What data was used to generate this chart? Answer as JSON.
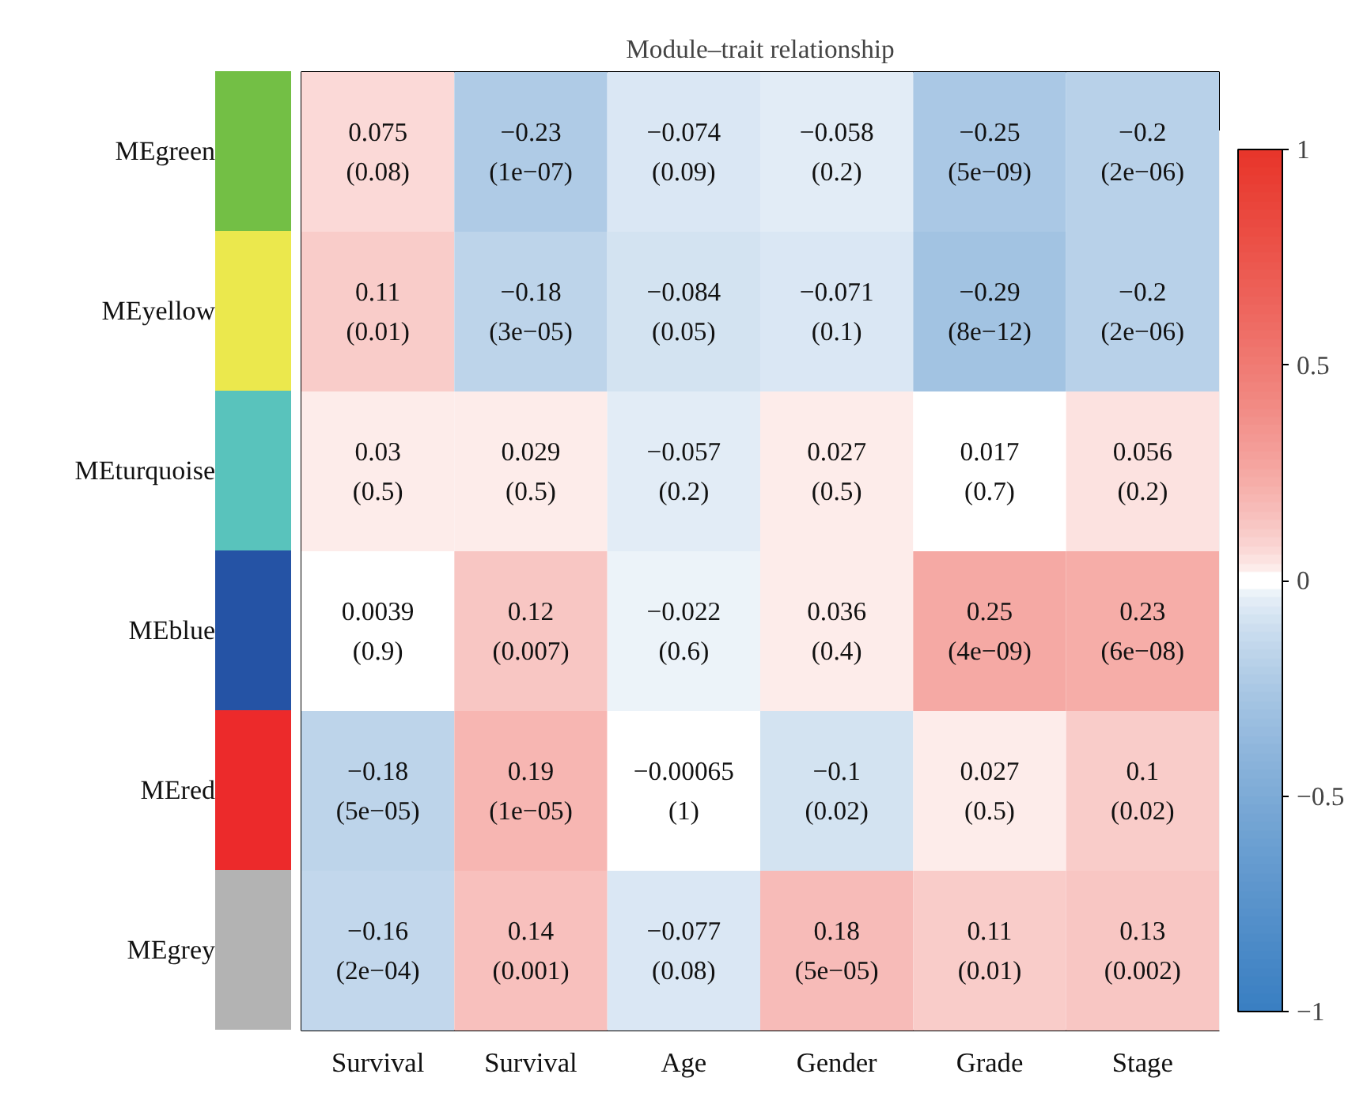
{
  "chart_data": {
    "type": "heatmap",
    "title": "Module–trait relationship",
    "categories": [
      "Survival",
      "Survival",
      "Age",
      "Gender",
      "Grade",
      "Stage"
    ],
    "y_categories": [
      "MEgreen",
      "MEyellow",
      "MEturquoise",
      "MEblue",
      "MEred",
      "MEgrey"
    ],
    "cells": [
      [
        0.075,
        -0.23,
        -0.074,
        -0.058,
        -0.25,
        -0.2
      ],
      [
        0.11,
        -0.18,
        -0.084,
        -0.071,
        -0.29,
        -0.2
      ],
      [
        0.03,
        0.029,
        -0.057,
        0.027,
        0.017,
        0.056
      ],
      [
        0.0039,
        0.12,
        -0.022,
        0.036,
        0.25,
        0.23
      ],
      [
        -0.18,
        0.19,
        -0.00065,
        -0.1,
        0.027,
        0.1
      ],
      [
        -0.16,
        0.14,
        -0.077,
        0.18,
        0.11,
        0.13
      ]
    ],
    "cell_labels": [
      [
        "0.075\n(0.08)",
        "−0.23\n(1e−07)",
        "−0.074\n(0.09)",
        "−0.058\n(0.2)",
        "−0.25\n(5e−09)",
        "−0.2\n(2e−06)"
      ],
      [
        "0.11\n(0.01)",
        "−0.18\n(3e−05)",
        "−0.084\n(0.05)",
        "−0.071\n(0.1)",
        "−0.29\n(8e−12)",
        "−0.2\n(2e−06)"
      ],
      [
        "0.03\n(0.5)",
        "0.029\n(0.5)",
        "−0.057\n(0.2)",
        "0.027\n(0.5)",
        "0.017\n(0.7)",
        "0.056\n(0.2)"
      ],
      [
        "0.0039\n(0.9)",
        "0.12\n(0.007)",
        "−0.022\n(0.6)",
        "0.036\n(0.4)",
        "0.25\n(4e−09)",
        "0.23\n(6e−08)"
      ],
      [
        "−0.18\n(5e−05)",
        "0.19\n(1e−05)",
        "−0.00065\n(1)",
        "−0.1\n(0.02)",
        "0.027\n(0.5)",
        "0.1\n(0.02)"
      ],
      [
        "−0.16\n(2e−04)",
        "0.14\n(0.001)",
        "−0.077\n(0.08)",
        "0.18\n(5e−05)",
        "0.11\n(0.01)",
        "0.13\n(0.002)"
      ]
    ],
    "clim": [
      -1,
      1
    ],
    "cticks": [
      {
        "value": -1,
        "label": "−1"
      },
      {
        "value": -0.5,
        "label": "−0.5"
      },
      0,
      0.5,
      1
    ]
  }
}
